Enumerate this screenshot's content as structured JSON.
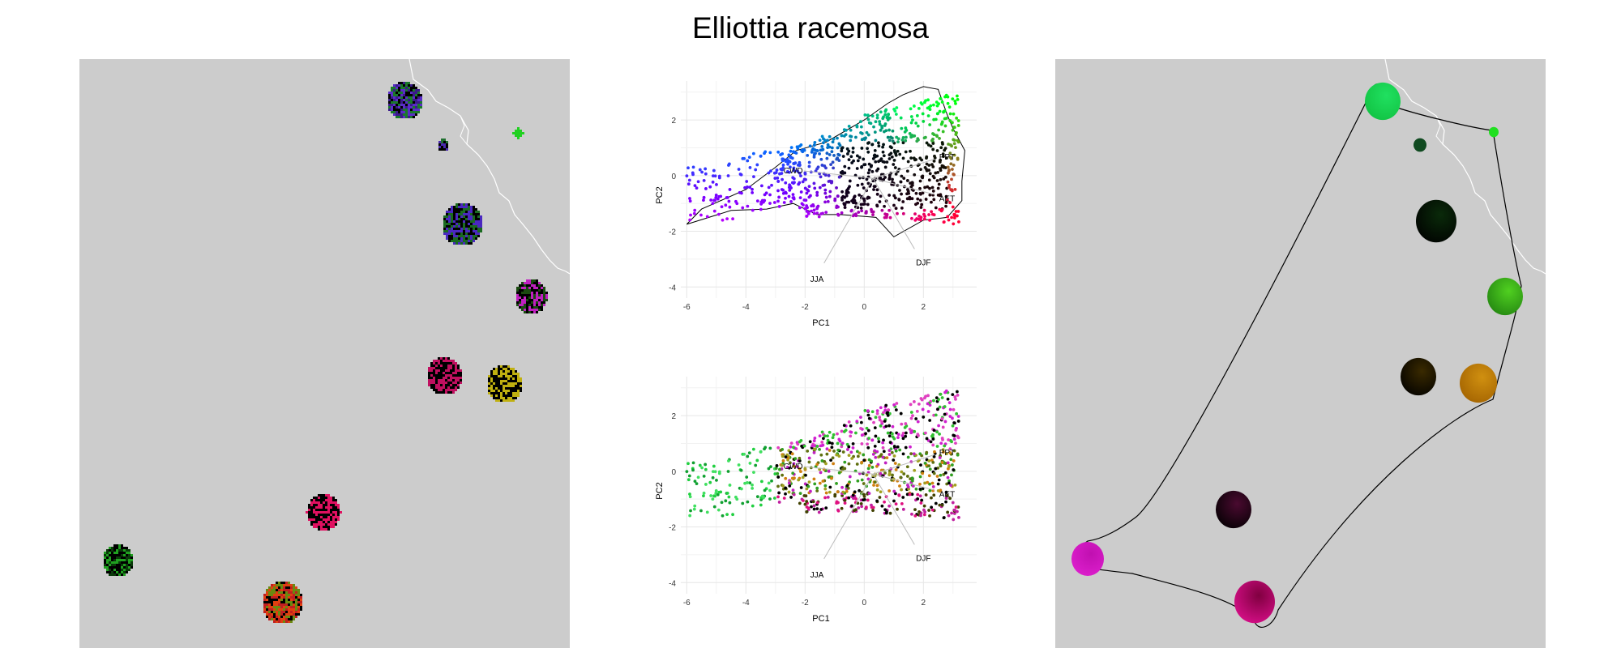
{
  "title": "Elliottia racemosa",
  "chart_data": [
    {
      "type": "scatter",
      "panel": "top",
      "title": "",
      "xlabel": "PC1",
      "ylabel": "PC2",
      "xlim": [
        -6.2,
        3.8
      ],
      "ylim": [
        -4.4,
        3.4
      ],
      "xticks": [
        -6,
        -4,
        -2,
        0,
        2
      ],
      "yticks": [
        -4,
        -2,
        0,
        2
      ],
      "grid": true,
      "color_scheme": "pc-space",
      "hull": true,
      "vectors": [
        {
          "label": "CWD",
          "x": -2.4,
          "y": 0.2
        },
        {
          "label": "PPT",
          "x": 2.8,
          "y": 0.7
        },
        {
          "label": "AET",
          "x": 2.8,
          "y": -0.8
        },
        {
          "label": "JJA",
          "x": -1.6,
          "y": -3.7
        },
        {
          "label": "DJF",
          "x": 2.0,
          "y": -3.1
        }
      ]
    },
    {
      "type": "scatter",
      "panel": "bottom",
      "title": "",
      "xlabel": "PC1",
      "ylabel": "PC2",
      "xlim": [
        -6.2,
        3.8
      ],
      "ylim": [
        -4.4,
        3.4
      ],
      "xticks": [
        -6,
        -4,
        -2,
        0,
        2
      ],
      "yticks": [
        -4,
        -2,
        0,
        2
      ],
      "grid": true,
      "color_scheme": "map-space",
      "hull": false,
      "vectors": [
        {
          "label": "CWD",
          "x": -2.4,
          "y": 0.2
        },
        {
          "label": "PPT",
          "x": 2.8,
          "y": 0.7
        },
        {
          "label": "AET",
          "x": 2.8,
          "y": -0.8
        },
        {
          "label": "JJA",
          "x": -1.6,
          "y": -3.7
        },
        {
          "label": "DJF",
          "x": 2.0,
          "y": -3.1
        }
      ]
    }
  ],
  "maps": {
    "left": {
      "background": "#cccccc",
      "patches": [
        {
          "name": "patch-1",
          "colors": [
            "#5a2cc8",
            "#3a1a8a",
            "#1a7a2a",
            "#000000"
          ]
        },
        {
          "name": "patch-2",
          "colors": [
            "#4a2ab0",
            "#207030",
            "#000000"
          ]
        },
        {
          "name": "patch-3",
          "colors": [
            "#20d020"
          ]
        },
        {
          "name": "patch-4",
          "colors": [
            "#4a28c0",
            "#1a6a20",
            "#000000"
          ]
        },
        {
          "name": "patch-5",
          "colors": [
            "#c020c0",
            "#1a4a10",
            "#000000"
          ]
        },
        {
          "name": "patch-6",
          "colors": [
            "#c01060",
            "#000000"
          ]
        },
        {
          "name": "patch-7",
          "colors": [
            "#c0b010",
            "#000000"
          ]
        },
        {
          "name": "patch-8",
          "colors": [
            "#e01060",
            "#000000"
          ]
        },
        {
          "name": "patch-9",
          "colors": [
            "#20a020",
            "#0a3a0a",
            "#000000"
          ]
        },
        {
          "name": "patch-10",
          "colors": [
            "#e04010",
            "#c02020",
            "#6a8a10",
            "#000000"
          ]
        }
      ]
    },
    "right": {
      "background": "#cccccc",
      "patches": [
        {
          "name": "patch-1",
          "colors": [
            "#10c040",
            "#20e060"
          ]
        },
        {
          "name": "patch-2",
          "colors": [
            "#104a20"
          ]
        },
        {
          "name": "patch-3",
          "colors": [
            "#20e020"
          ]
        },
        {
          "name": "patch-4",
          "colors": [
            "#000000",
            "#0a2a0a"
          ]
        },
        {
          "name": "patch-5",
          "colors": [
            "#208010",
            "#50d020"
          ]
        },
        {
          "name": "patch-6",
          "colors": [
            "#000000",
            "#3a2a00"
          ]
        },
        {
          "name": "patch-7",
          "colors": [
            "#a06000",
            "#d09010"
          ]
        },
        {
          "name": "patch-8",
          "colors": [
            "#000000",
            "#4a0a30"
          ]
        },
        {
          "name": "patch-9",
          "colors": [
            "#e020d0",
            "#c010b0"
          ]
        },
        {
          "name": "patch-10",
          "colors": [
            "#e01090",
            "#800040"
          ]
        }
      ]
    }
  }
}
